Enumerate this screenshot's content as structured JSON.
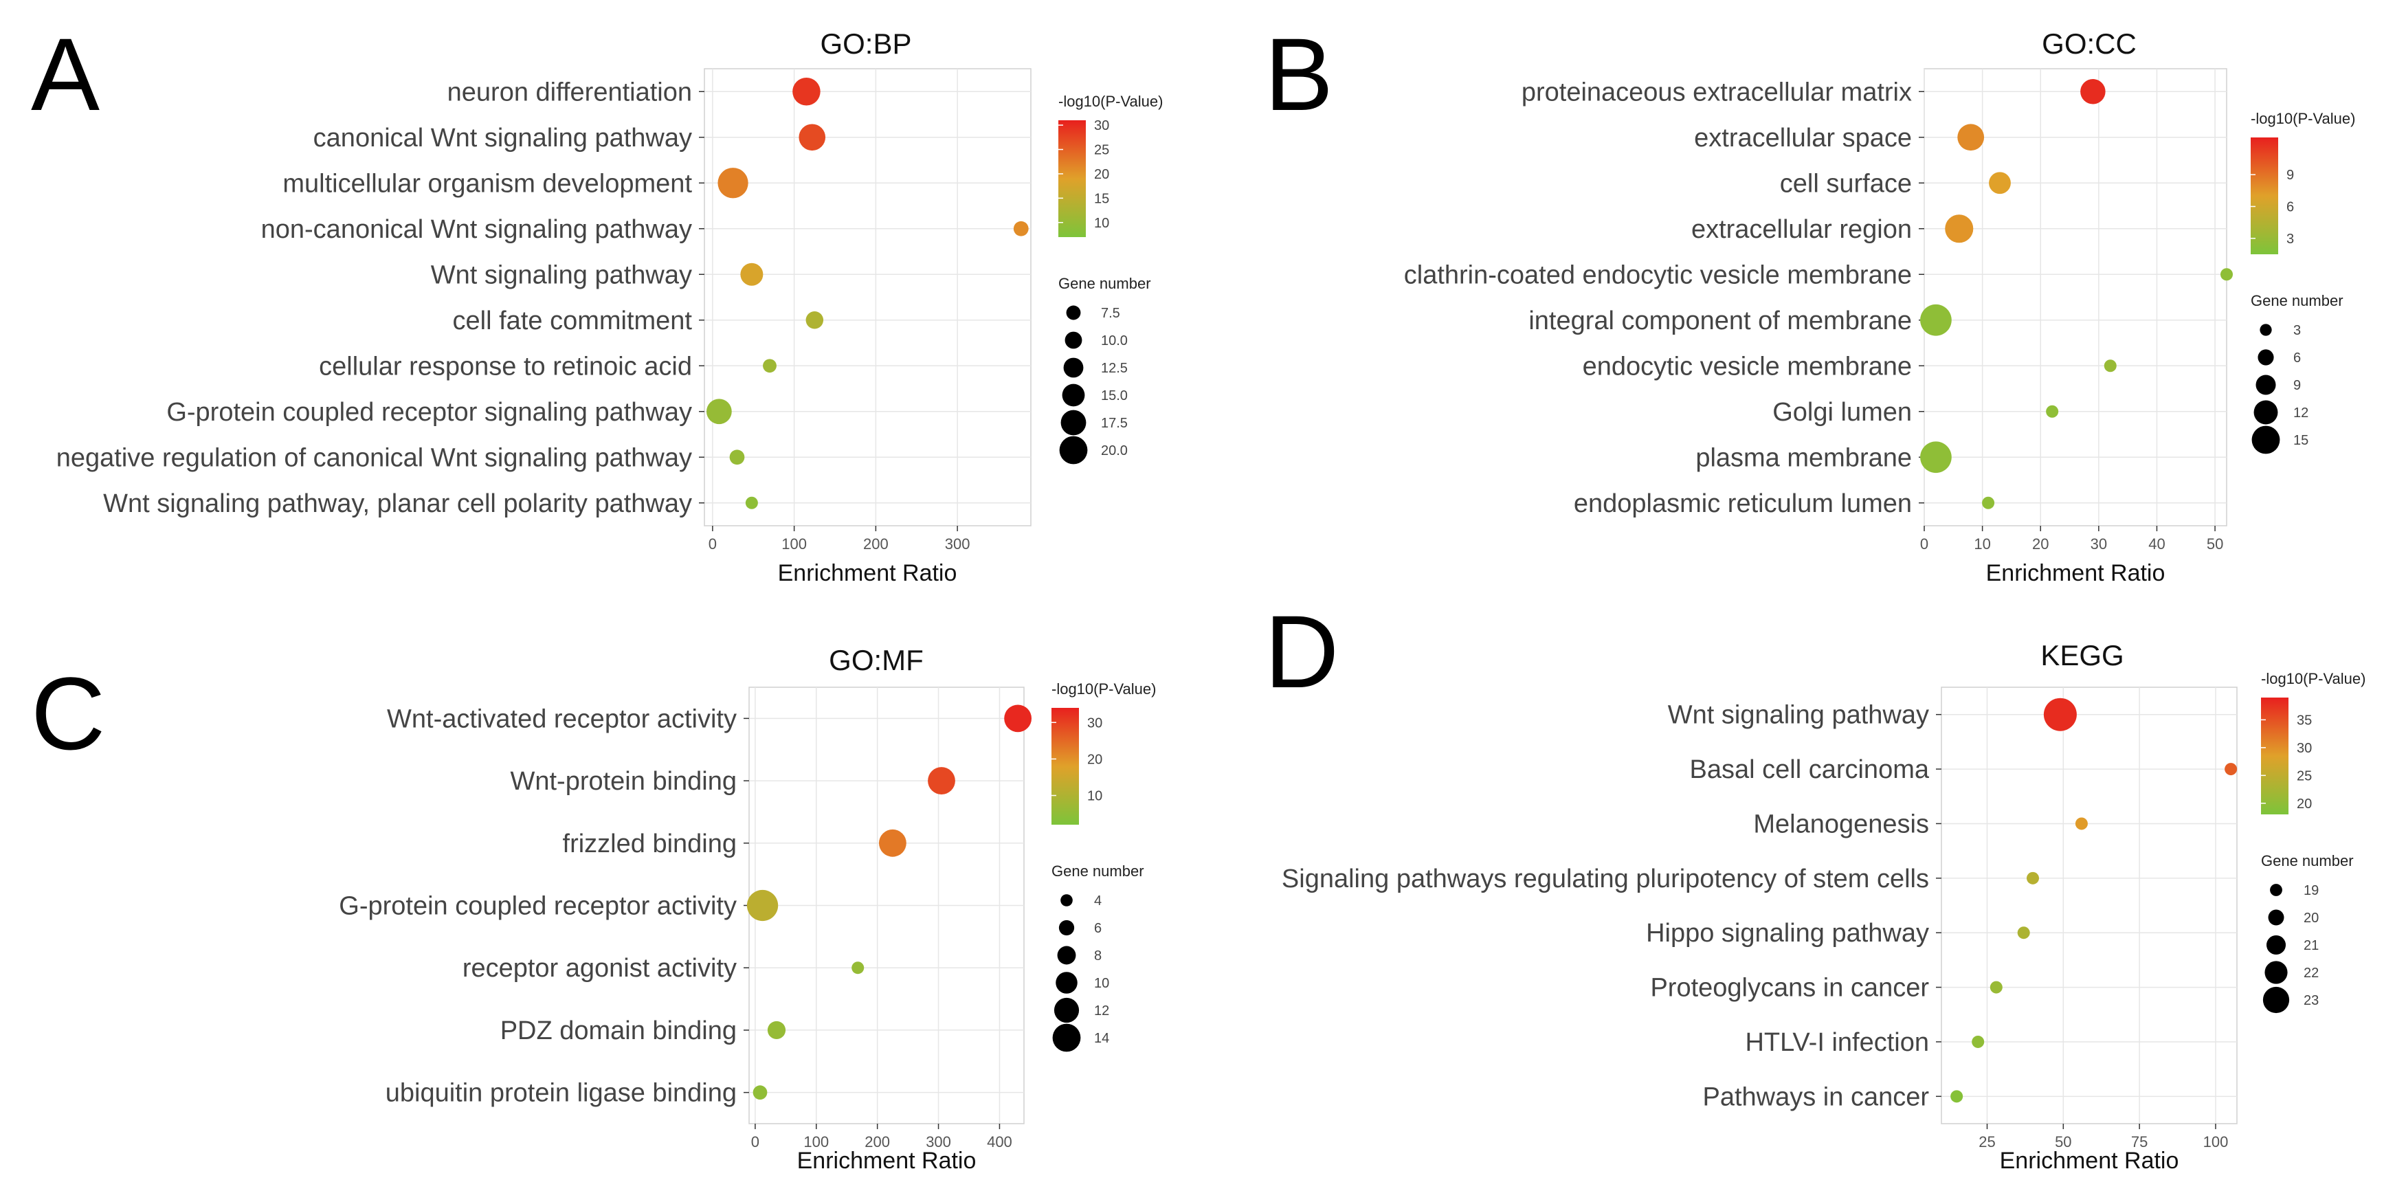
{
  "chart_data": [
    {
      "panel": "A",
      "type": "scatter",
      "title": "GO:BP",
      "xlabel": "Enrichment Ratio",
      "xlim": [
        -10,
        390
      ],
      "xticks": [
        0,
        100,
        200,
        300
      ],
      "categories": [
        "neuron differentiation",
        "canonical Wnt signaling pathway",
        "multicellular organism development",
        "non-canonical Wnt signaling pathway",
        "Wnt signaling pathway",
        "cell fate commitment",
        "cellular response to retinoic acid",
        "G-protein coupled receptor signaling pathway",
        "negative regulation of canonical Wnt signaling pathway",
        "Wnt signaling pathway, planar cell polarity pathway"
      ],
      "x": [
        115,
        122,
        25,
        378,
        48,
        125,
        70,
        8,
        30,
        48
      ],
      "neglog10p": [
        29,
        27,
        22,
        21,
        18,
        13,
        11,
        10,
        10,
        9
      ],
      "gene_number": [
        16,
        15,
        18,
        6,
        12,
        8,
        5,
        14,
        6,
        4
      ],
      "color_legend": {
        "title": "-log10(P-Value)",
        "range": [
          7,
          31
        ],
        "ticks": [
          10,
          15,
          20,
          25,
          30
        ]
      },
      "size_legend": {
        "title": "Gene number",
        "ticks": [
          7.5,
          10.0,
          12.5,
          15.0,
          17.5,
          20.0
        ],
        "range": [
          4,
          20
        ]
      }
    },
    {
      "panel": "B",
      "type": "scatter",
      "title": "GO:CC",
      "xlabel": "Enrichment Ratio",
      "xlim": [
        0,
        52
      ],
      "xticks": [
        0,
        10,
        20,
        30,
        40,
        50
      ],
      "categories": [
        "proteinaceous extracellular matrix",
        "extracellular space",
        "cell surface",
        "extracellular region",
        "clathrin-coated endocytic vesicle membrane",
        "integral component of membrane",
        "endocytic vesicle membrane",
        "Golgi lumen",
        "plasma membrane",
        "endoplasmic reticulum lumen"
      ],
      "x": [
        29,
        8,
        13,
        6,
        52,
        2,
        32,
        22,
        2,
        11
      ],
      "neglog10p": [
        12,
        8,
        7,
        7.5,
        2.5,
        2.5,
        3,
        2.5,
        2.5,
        2.5
      ],
      "gene_number": [
        10,
        11,
        8,
        12,
        2,
        14,
        2,
        2,
        14,
        2
      ],
      "color_legend": {
        "title": "-log10(P-Value)",
        "range": [
          1.5,
          12.5
        ],
        "ticks": [
          3,
          6,
          9
        ]
      },
      "size_legend": {
        "title": "Gene number",
        "ticks": [
          3,
          6,
          9,
          12,
          15
        ],
        "range": [
          2,
          15
        ]
      }
    },
    {
      "panel": "C",
      "type": "scatter",
      "title": "GO:MF",
      "xlabel": "Enrichment Ratio",
      "xlim": [
        -10,
        440
      ],
      "xticks": [
        0,
        100,
        200,
        300,
        400
      ],
      "categories": [
        "Wnt-activated receptor activity",
        "Wnt-protein binding",
        "frizzled binding",
        "G-protein coupled receptor activity",
        "receptor agonist activity",
        "PDZ domain binding",
        "ubiquitin protein ligase binding"
      ],
      "x": [
        430,
        305,
        225,
        12,
        168,
        35,
        8
      ],
      "neglog10p": [
        33,
        29,
        23,
        12,
        6,
        6,
        5
      ],
      "gene_number": [
        11,
        11,
        11,
        13,
        3,
        6,
        4
      ],
      "color_legend": {
        "title": "-log10(P-Value)",
        "range": [
          2,
          34
        ],
        "ticks": [
          10,
          20,
          30
        ]
      },
      "size_legend": {
        "title": "Gene number",
        "ticks": [
          4,
          6,
          8,
          10,
          12,
          14
        ],
        "range": [
          3,
          14
        ]
      }
    },
    {
      "panel": "D",
      "type": "scatter",
      "title": "KEGG",
      "xlabel": "Enrichment Ratio",
      "xlim": [
        10,
        107
      ],
      "xticks": [
        25,
        50,
        75,
        100
      ],
      "categories": [
        "Wnt signaling pathway",
        "Basal cell carcinoma",
        "Melanogenesis",
        "Signaling pathways regulating pluripotency of stem cells",
        "Hippo signaling pathway",
        "Proteoglycans in cancer",
        "HTLV-I infection",
        "Pathways in cancer"
      ],
      "x": [
        49,
        105,
        56,
        40,
        37,
        28,
        22,
        15
      ],
      "neglog10p": [
        38,
        34,
        29,
        24,
        23,
        21,
        20,
        19
      ],
      "gene_number": [
        23.5,
        18.5,
        18.5,
        18.5,
        18.5,
        18.5,
        18.5,
        18.5
      ],
      "color_legend": {
        "title": "-log10(P-Value)",
        "range": [
          18,
          39
        ],
        "ticks": [
          20,
          25,
          30,
          35
        ]
      },
      "size_legend": {
        "title": "Gene number",
        "ticks": [
          19,
          20,
          21,
          22,
          23
        ],
        "range": [
          18.5,
          23.5
        ]
      }
    }
  ],
  "colors": {
    "low": "#7DC43A",
    "mid": "#E0A12A",
    "high": "#E8201E",
    "grid": "#E6E6E6",
    "axis": "#333333"
  }
}
